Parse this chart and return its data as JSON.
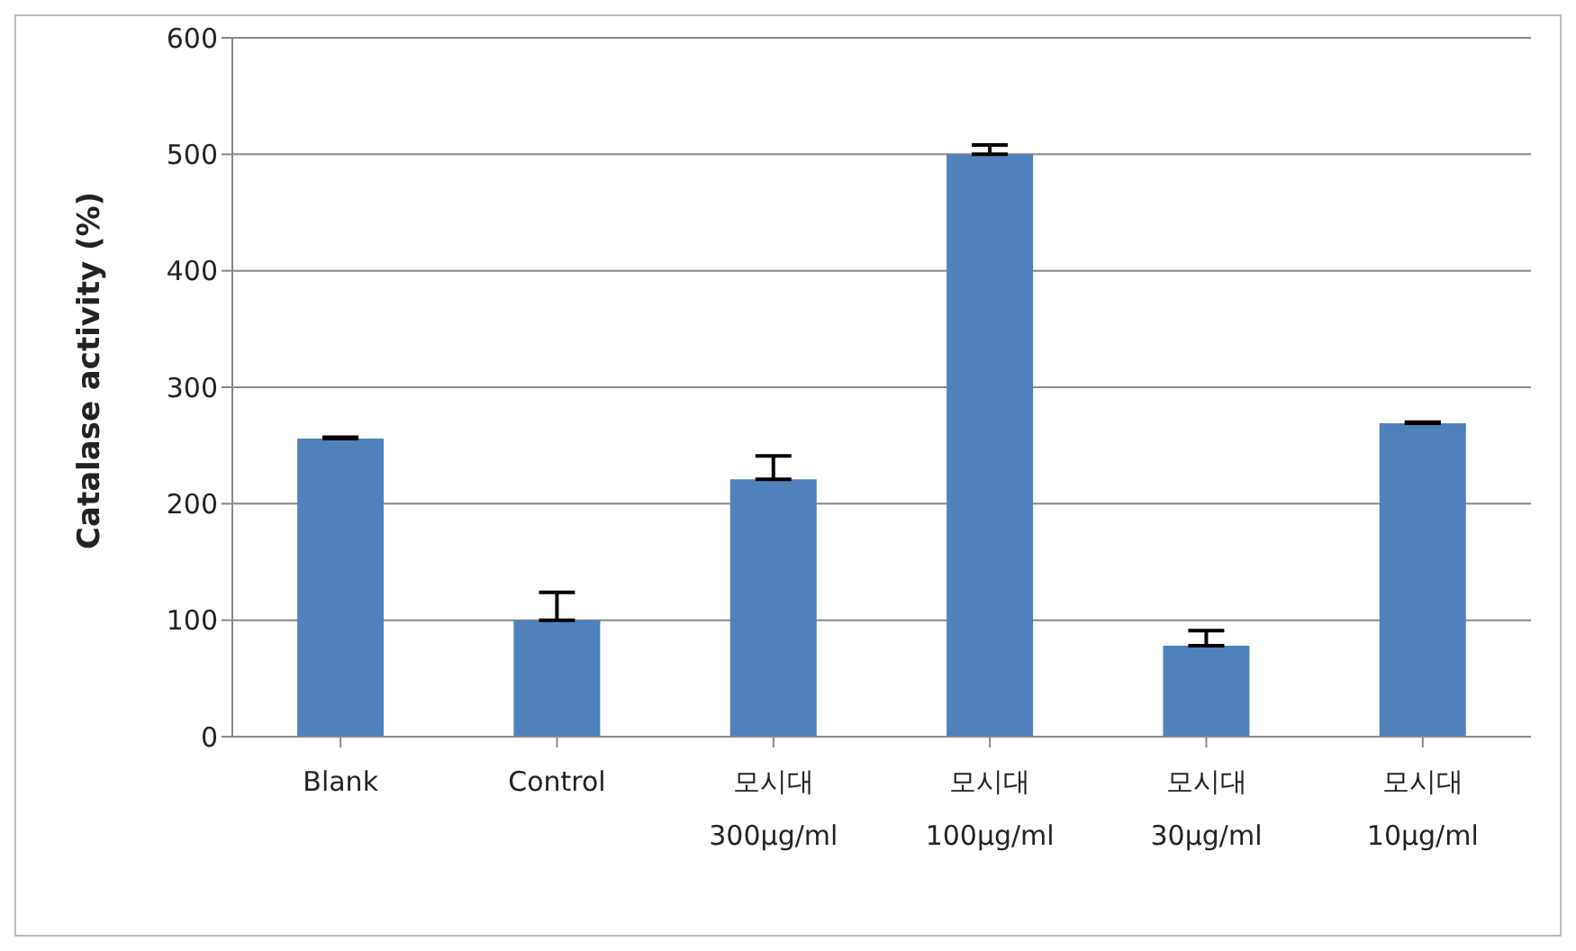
{
  "chart_data": {
    "type": "bar",
    "ylabel": "Catalase activity (%)",
    "categories": [
      "Blank",
      "Control",
      "모시대\n300µg/ml",
      "모시대\n100µg/ml",
      "모시대\n30µg/ml",
      "모시대\n10µg/ml"
    ],
    "values": [
      256,
      100,
      221,
      500,
      78,
      269
    ],
    "errors": [
      [
        256,
        257
      ],
      [
        100,
        124
      ],
      [
        221,
        241
      ],
      [
        500,
        508
      ],
      [
        78,
        91
      ],
      [
        269,
        270
      ]
    ],
    "color": "#4f81bd",
    "ylim": [
      0,
      600
    ],
    "yticks": [
      0,
      100,
      200,
      300,
      400,
      500,
      600
    ],
    "grid": "y"
  }
}
